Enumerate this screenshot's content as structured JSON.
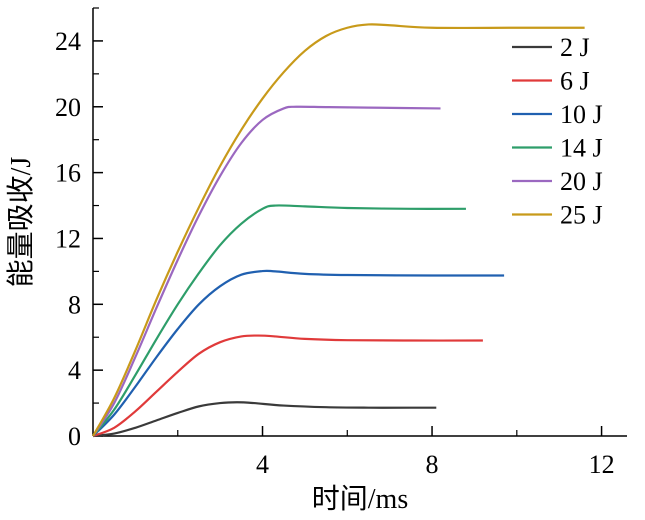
{
  "chart_data": {
    "type": "line",
    "xlabel": "时间/ms",
    "ylabel": "能量吸收/J",
    "xlim": [
      0,
      12.6
    ],
    "ylim": [
      0,
      26
    ],
    "xticks": [
      4,
      8,
      12
    ],
    "yticks": [
      0,
      4,
      8,
      12,
      16,
      20,
      24
    ],
    "x_tick_labels": [
      "4",
      "8",
      "12"
    ],
    "y_tick_labels": [
      "0",
      "4",
      "8",
      "12",
      "16",
      "20",
      "24"
    ],
    "grid": false,
    "legend_position": "top-right",
    "series": [
      {
        "name": "2 J",
        "color": "#3a3a3a",
        "x": [
          0.0,
          0.5,
          1.0,
          1.5,
          2.0,
          2.5,
          3.0,
          3.4,
          3.8,
          4.5,
          5.5,
          6.5,
          7.5,
          8.1
        ],
        "y": [
          0.0,
          0.15,
          0.5,
          0.95,
          1.4,
          1.8,
          2.0,
          2.05,
          2.0,
          1.85,
          1.75,
          1.72,
          1.72,
          1.72
        ]
      },
      {
        "name": "6 J",
        "color": "#e03a3a",
        "x": [
          0.0,
          0.5,
          1.0,
          1.5,
          2.0,
          2.5,
          3.0,
          3.5,
          3.9,
          4.3,
          5.0,
          6.0,
          7.5,
          9.2
        ],
        "y": [
          0.0,
          0.5,
          1.5,
          2.7,
          3.9,
          5.0,
          5.7,
          6.05,
          6.1,
          6.05,
          5.9,
          5.82,
          5.8,
          5.8
        ]
      },
      {
        "name": "10 J",
        "color": "#2060b0",
        "x": [
          0.0,
          0.5,
          1.0,
          1.5,
          2.0,
          2.5,
          3.0,
          3.5,
          4.0,
          4.3,
          5.0,
          6.0,
          8.0,
          9.7
        ],
        "y": [
          0.0,
          1.3,
          3.0,
          4.8,
          6.5,
          8.0,
          9.1,
          9.8,
          10.02,
          10.0,
          9.85,
          9.78,
          9.75,
          9.75
        ]
      },
      {
        "name": "14 J",
        "color": "#2e9e6a",
        "x": [
          0.0,
          0.5,
          1.0,
          1.5,
          2.0,
          2.5,
          3.0,
          3.5,
          4.0,
          4.3,
          5.0,
          6.0,
          7.5,
          8.8
        ],
        "y": [
          0.0,
          1.6,
          3.7,
          5.9,
          8.0,
          9.9,
          11.6,
          12.9,
          13.8,
          14.0,
          13.95,
          13.85,
          13.8,
          13.8
        ]
      },
      {
        "name": "20 J",
        "color": "#9b68c0",
        "x": [
          0.0,
          0.5,
          1.0,
          1.5,
          2.0,
          2.5,
          3.0,
          3.5,
          4.0,
          4.5,
          4.8,
          5.5,
          6.5,
          8.2
        ],
        "y": [
          0.0,
          2.0,
          4.8,
          7.8,
          10.7,
          13.4,
          15.8,
          17.8,
          19.2,
          19.9,
          20.0,
          19.98,
          19.95,
          19.9
        ]
      },
      {
        "name": "25 J",
        "color": "#c89a1a",
        "x": [
          0.0,
          0.5,
          1.0,
          1.5,
          2.0,
          2.5,
          3.0,
          3.5,
          4.0,
          4.5,
          5.0,
          5.5,
          6.0,
          6.5,
          7.0,
          8.0,
          10.0,
          11.6
        ],
        "y": [
          0.0,
          2.3,
          5.2,
          8.3,
          11.2,
          13.9,
          16.4,
          18.6,
          20.5,
          22.1,
          23.4,
          24.3,
          24.8,
          25.0,
          24.95,
          24.8,
          24.8,
          24.8
        ]
      }
    ]
  }
}
